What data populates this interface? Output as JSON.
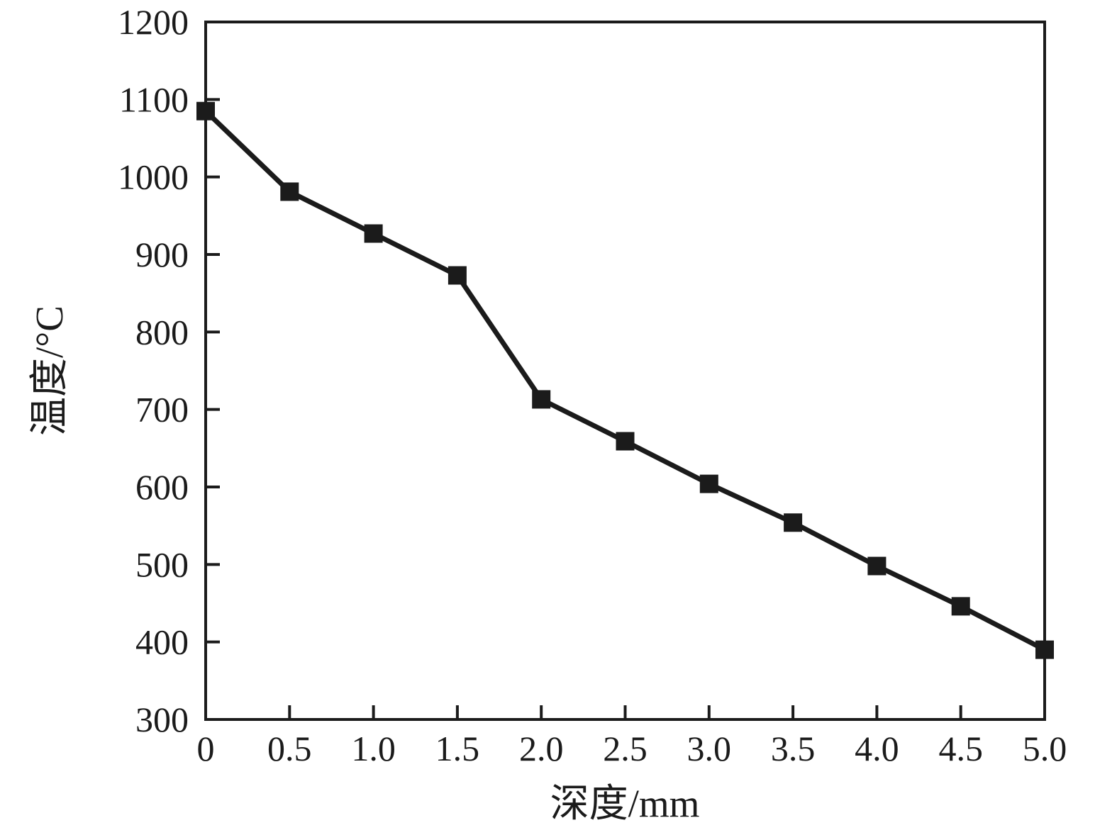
{
  "chart_data": {
    "type": "line",
    "title": "",
    "xlabel": "深度/mm",
    "ylabel": "温度/°C",
    "xlim": [
      0,
      5.0
    ],
    "ylim": [
      300,
      1200
    ],
    "x": [
      0,
      0.5,
      1.0,
      1.5,
      2.0,
      2.5,
      3.0,
      3.5,
      4.0,
      4.5,
      5.0
    ],
    "x_tick_labels": [
      "0",
      "0.5",
      "1.0",
      "1.5",
      "2.0",
      "2.5",
      "3.0",
      "3.5",
      "4.0",
      "4.5",
      "5.0"
    ],
    "y_ticks": [
      300,
      400,
      500,
      600,
      700,
      800,
      900,
      1000,
      1100,
      1200
    ],
    "y_tick_labels": [
      "300",
      "400",
      "500",
      "600",
      "700",
      "800",
      "900",
      "1000",
      "1100",
      "1200"
    ],
    "series": [
      {
        "values": [
          1085,
          981,
          927,
          873,
          713,
          659,
          604,
          554,
          498,
          446,
          390
        ],
        "marker": "filled-square",
        "color": "#1b1b1b"
      }
    ],
    "grid": false,
    "legend_position": "none",
    "background": "#ffffff",
    "axis_color": "#1b1b1b"
  }
}
